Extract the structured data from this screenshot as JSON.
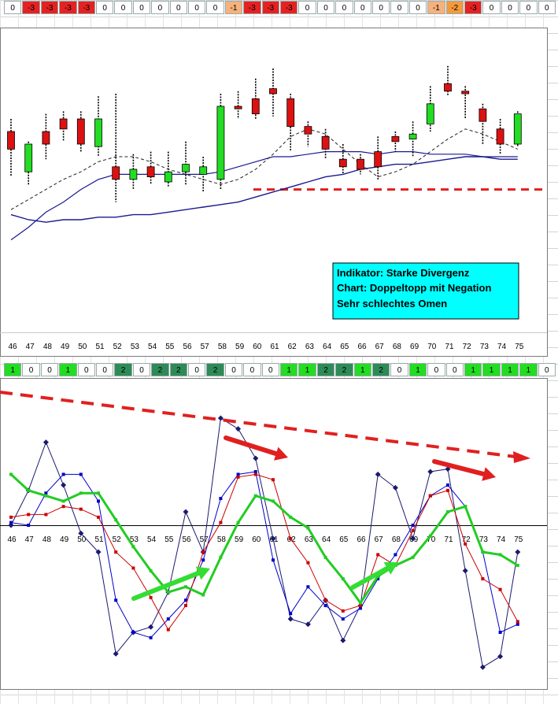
{
  "top_strip": {
    "values": [
      "0",
      "-3",
      "-3",
      "-3",
      "-3",
      "0",
      "0",
      "0",
      "0",
      "0",
      "0",
      "0",
      "-1",
      "-3",
      "-3",
      "-3",
      "0",
      "0",
      "0",
      "0",
      "0",
      "0",
      "0",
      "-1",
      "-2",
      "-3",
      "0",
      "0",
      "0",
      "0"
    ],
    "colors": [
      "#ffffff",
      "#e52222",
      "#e52222",
      "#e52222",
      "#e52222",
      "#ffffff",
      "#ffffff",
      "#ffffff",
      "#ffffff",
      "#ffffff",
      "#ffffff",
      "#ffffff",
      "#f6b27c",
      "#e52222",
      "#e52222",
      "#e52222",
      "#ffffff",
      "#ffffff",
      "#ffffff",
      "#ffffff",
      "#ffffff",
      "#ffffff",
      "#ffffff",
      "#f6b27c",
      "#f49a3c",
      "#e52222",
      "#ffffff",
      "#ffffff",
      "#ffffff",
      "#ffffff"
    ]
  },
  "mid_strip": {
    "values": [
      "1",
      "0",
      "0",
      "1",
      "0",
      "0",
      "2",
      "0",
      "2",
      "2",
      "0",
      "2",
      "0",
      "0",
      "0",
      "1",
      "1",
      "2",
      "2",
      "1",
      "2",
      "0",
      "1",
      "0",
      "0",
      "1",
      "1",
      "1",
      "1",
      "0"
    ],
    "colors": [
      "#22dd22",
      "#ffffff",
      "#ffffff",
      "#22dd22",
      "#ffffff",
      "#ffffff",
      "#2e8b57",
      "#ffffff",
      "#2e8b57",
      "#2e8b57",
      "#ffffff",
      "#2e8b57",
      "#ffffff",
      "#ffffff",
      "#ffffff",
      "#22dd22",
      "#22dd22",
      "#2e8b57",
      "#2e8b57",
      "#22dd22",
      "#2e8b57",
      "#ffffff",
      "#22dd22",
      "#ffffff",
      "#ffffff",
      "#22dd22",
      "#22dd22",
      "#22dd22",
      "#22dd22",
      "#ffffff"
    ]
  },
  "annotation": {
    "line1": "Indikator: Starke Divergenz",
    "line2": "Chart: Doppeltopp mit Negation",
    "line3": "Sehr schlechtes Omen"
  },
  "chart_data": [
    {
      "type": "candlestick",
      "title": "",
      "x": [
        46,
        47,
        48,
        49,
        50,
        51,
        52,
        53,
        54,
        55,
        56,
        57,
        58,
        59,
        60,
        61,
        62,
        63,
        64,
        65,
        66,
        67,
        68,
        69,
        70,
        71,
        72,
        73,
        74,
        75
      ],
      "ohlc": [
        [
          65,
          58,
          70,
          47
        ],
        [
          49,
          60,
          61,
          44
        ],
        [
          65,
          60,
          72,
          54
        ],
        [
          70,
          66,
          73,
          61
        ],
        [
          70,
          60,
          73,
          57
        ],
        [
          59,
          70,
          79,
          55
        ],
        [
          51,
          46,
          80,
          37
        ],
        [
          46,
          50,
          56,
          42
        ],
        [
          51,
          47,
          57,
          44
        ],
        [
          45,
          49,
          57,
          43
        ],
        [
          49,
          52,
          61,
          44
        ],
        [
          48,
          51,
          55,
          41
        ],
        [
          46,
          75,
          80,
          42
        ],
        [
          75,
          74,
          81,
          70
        ],
        [
          78,
          72,
          86,
          70
        ],
        [
          82,
          80,
          90,
          71
        ],
        [
          78,
          67,
          80,
          57
        ],
        [
          67,
          64,
          69,
          59
        ],
        [
          63,
          58,
          66,
          54
        ],
        [
          54,
          51,
          60,
          48
        ],
        [
          54,
          50,
          56,
          48
        ],
        [
          57,
          51,
          63,
          46
        ],
        [
          63,
          61,
          65,
          57
        ],
        [
          62,
          64,
          69,
          55
        ],
        [
          68,
          76,
          83,
          65
        ],
        [
          84,
          81,
          91,
          79
        ],
        [
          81,
          80,
          83,
          70
        ],
        [
          74,
          69,
          76,
          60
        ],
        [
          66,
          60,
          70,
          56
        ],
        [
          60,
          72,
          73,
          59
        ]
      ],
      "up_color": "#22dd22",
      "down_color": "#dd1111",
      "ma_dashed": [
        34,
        38,
        42,
        46,
        49,
        53,
        55,
        55,
        53,
        50,
        48,
        46,
        44,
        46,
        50,
        56,
        63,
        66,
        64,
        58,
        52,
        47,
        49,
        52,
        57,
        62,
        66,
        64,
        61,
        58
      ],
      "ma_navy_1": [
        22,
        27,
        33,
        37,
        42,
        46,
        48,
        48,
        48,
        48,
        48,
        48,
        49,
        51,
        53,
        55,
        55,
        56,
        57,
        57,
        57,
        56,
        57,
        57,
        56,
        56,
        56,
        55,
        55,
        55
      ],
      "ma_navy_2": [
        32,
        30,
        29,
        30,
        30,
        31,
        31,
        32,
        32,
        33,
        34,
        35,
        36,
        37,
        39,
        41,
        43,
        45,
        47,
        48,
        50,
        51,
        52,
        52,
        53,
        54,
        55,
        55,
        54,
        54
      ],
      "support_level": 42
    },
    {
      "type": "line",
      "title": "",
      "x": [
        46,
        47,
        48,
        49,
        50,
        51,
        52,
        53,
        54,
        55,
        56,
        57,
        58,
        59,
        60,
        61,
        62,
        63,
        64,
        65,
        66,
        67,
        68,
        69,
        70,
        71,
        72,
        73,
        74,
        75
      ],
      "series": [
        {
          "color": "#1a1a6e",
          "values": [
            0,
            13,
            31,
            15,
            -3,
            -10,
            -48,
            -40,
            -38,
            -25,
            5,
            -10,
            40,
            36,
            25,
            -5,
            -35,
            -37,
            -28,
            -43,
            -30,
            19,
            14,
            -5,
            20,
            21,
            -17,
            -53,
            -49,
            -10
          ]
        },
        {
          "color": "#0000cc",
          "values": [
            1,
            0,
            12,
            19,
            19,
            9,
            -28,
            -40,
            -42,
            -35,
            -28,
            -13,
            10,
            19,
            20,
            -13,
            -33,
            -23,
            -30,
            -35,
            -31,
            -20,
            -11,
            0,
            11,
            15,
            7,
            -10,
            -40,
            -37
          ]
        },
        {
          "color": "#cc0000",
          "values": [
            3,
            4,
            4,
            7,
            6,
            3,
            -10,
            -16,
            -27,
            -39,
            -30,
            -10,
            1,
            18,
            19,
            17,
            -5,
            -14,
            -28,
            -32,
            -30,
            -11,
            -15,
            -2,
            11,
            13,
            -7,
            -20,
            -24,
            -36
          ]
        },
        {
          "color": "#22cc22",
          "values": [
            19,
            13,
            11,
            9,
            12,
            12,
            2,
            -8,
            -17,
            -25,
            -23,
            -26,
            -12,
            1,
            11,
            9,
            3,
            -1,
            -12,
            -20,
            -29,
            -19,
            -15,
            -12,
            -4,
            5,
            7,
            -10,
            -11,
            -15
          ]
        }
      ],
      "ylim": [
        -75,
        60
      ]
    }
  ]
}
